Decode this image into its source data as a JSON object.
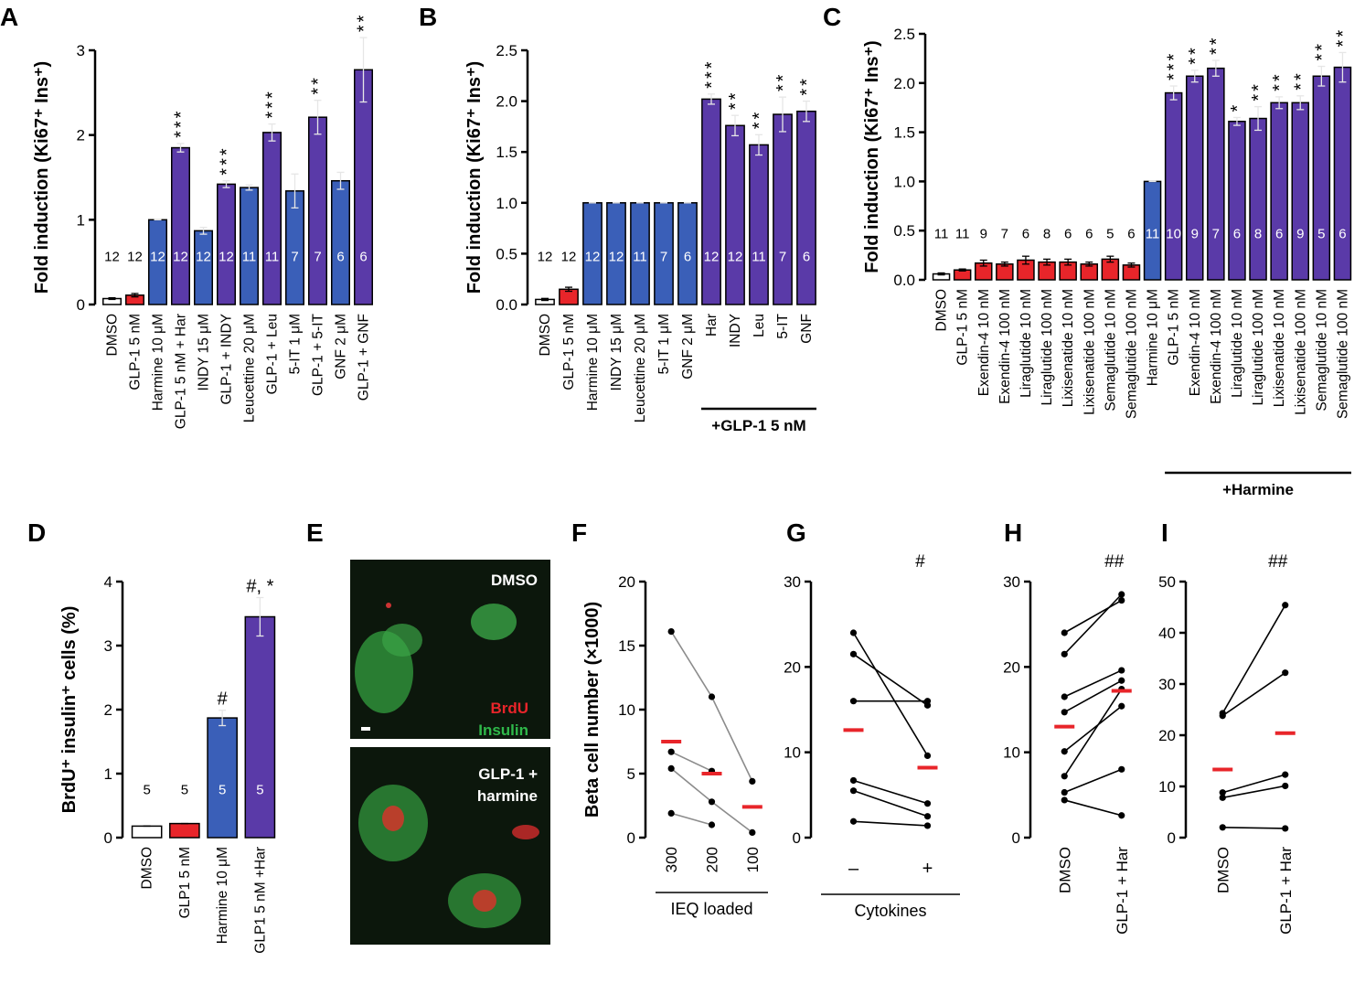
{
  "chart_data": [
    {
      "panel": "A",
      "type": "bar",
      "y_label": "Fold induction (Ki67⁺ Ins⁺)",
      "categories": [
        "DMSO",
        "GLP-1 5 nM",
        "Harmine 10 μM",
        "GLP-1 5 nM + Har",
        "INDY 15 μM",
        "GLP-1 + INDY",
        "Leucettine 20 μM",
        "GLP-1 + Leu",
        "5-IT 1 μM",
        "GLP-1 + 5-IT",
        "GNF 2 μM",
        "GLP-1 + GNF"
      ],
      "values": [
        0.07,
        0.11,
        1.0,
        1.85,
        0.87,
        1.42,
        1.38,
        2.03,
        1.34,
        2.21,
        1.46,
        2.77
      ],
      "errors": [
        0.01,
        0.02,
        0,
        0.05,
        0.04,
        0.04,
        0.03,
        0.1,
        0.2,
        0.2,
        0.1,
        0.38
      ],
      "colors": [
        "#ffffff",
        "#e8252a",
        "#3a5fb8",
        "#5a3aa8",
        "#3a5fb8",
        "#5a3aa8",
        "#3a5fb8",
        "#5a3aa8",
        "#3a5fb8",
        "#5a3aa8",
        "#3a5fb8",
        "#5a3aa8"
      ],
      "n": [
        12,
        12,
        12,
        12,
        12,
        12,
        11,
        11,
        7,
        7,
        6,
        6
      ],
      "significance": [
        null,
        null,
        null,
        "***",
        null,
        "***",
        null,
        "***",
        null,
        "**",
        null,
        "**"
      ],
      "significance_rotated": true,
      "ylim": [
        0,
        3
      ],
      "yticks": [
        0,
        1,
        2,
        3
      ]
    },
    {
      "panel": "B",
      "type": "bar",
      "y_label": "Fold induction (Ki67⁺ Ins⁺)",
      "categories": [
        "DMSO",
        "GLP-1 5 nM",
        "Harmine 10 μM",
        "INDY 15 μM",
        "Leucettine 20 μM",
        "5-IT 1 μM",
        "GNF 2 μM",
        "Har",
        "INDY",
        "Leu",
        "5-IT",
        "GNF"
      ],
      "values": [
        0.05,
        0.15,
        1.0,
        1.0,
        1.0,
        1.0,
        1.0,
        2.02,
        1.76,
        1.57,
        1.87,
        1.9
      ],
      "errors": [
        0.01,
        0.02,
        0,
        0,
        0,
        0,
        0,
        0.05,
        0.1,
        0.1,
        0.17,
        0.1
      ],
      "colors": [
        "#ffffff",
        "#e8252a",
        "#3a5fb8",
        "#3a5fb8",
        "#3a5fb8",
        "#3a5fb8",
        "#3a5fb8",
        "#5a3aa8",
        "#5a3aa8",
        "#5a3aa8",
        "#5a3aa8",
        "#5a3aa8"
      ],
      "n": [
        12,
        12,
        12,
        12,
        11,
        7,
        6,
        12,
        12,
        11,
        7,
        6
      ],
      "significance": [
        null,
        null,
        null,
        null,
        null,
        null,
        null,
        "***",
        "**",
        "**",
        "**",
        "**"
      ],
      "significance_rotated": true,
      "bracket_label": "+GLP-1 5 nM",
      "ylim": [
        0,
        2.5
      ],
      "yticks": [
        {
          "value": 0,
          "label": "0.0"
        },
        0.5,
        {
          "value": 1,
          "label": "1.0"
        },
        1.5,
        {
          "value": 2,
          "label": "2.0"
        },
        2.5
      ]
    },
    {
      "panel": "C",
      "type": "bar",
      "y_label": "Fold induction (Ki67⁺ Ins⁺)",
      "categories": [
        "DMSO",
        "GLP-1 5 nM",
        "Exendin-4 10 nM",
        "Exendin-4 100 nM",
        "Liraglutide 10 nM",
        "Liraglutide 100 nM",
        "Lixisenatide 10 nM",
        "Lixisenatide 100 nM",
        "Semaglutide 10 nM",
        "Semaglutide 100 nM",
        "Harmine 10 μM",
        "GLP-1 5 nM",
        "Exendin-4 10 nM",
        "Exendin-4 100 nM",
        "Liraglutide 10 nM",
        "Liraglutide 100 nM",
        "Lixisenatide 10 nM",
        "Lixisenatide 100 nM",
        "Semaglutide 10 nM",
        "Semaglutide 100 nM"
      ],
      "values": [
        0.06,
        0.1,
        0.17,
        0.16,
        0.2,
        0.18,
        0.18,
        0.16,
        0.21,
        0.15,
        1.0,
        1.9,
        2.07,
        2.15,
        1.61,
        1.64,
        1.8,
        1.8,
        2.07,
        2.16
      ],
      "errors": [
        0.01,
        0.01,
        0.03,
        0.02,
        0.04,
        0.03,
        0.03,
        0.02,
        0.03,
        0.02,
        0,
        0.07,
        0.06,
        0.08,
        0.04,
        0.12,
        0.06,
        0.07,
        0.1,
        0.15
      ],
      "colors": [
        "#ffffff",
        "#e8252a",
        "#e8252a",
        "#e8252a",
        "#e8252a",
        "#e8252a",
        "#e8252a",
        "#e8252a",
        "#e8252a",
        "#e8252a",
        "#3a5fb8",
        "#5a3aa8",
        "#5a3aa8",
        "#5a3aa8",
        "#5a3aa8",
        "#5a3aa8",
        "#5a3aa8",
        "#5a3aa8",
        "#5a3aa8",
        "#5a3aa8"
      ],
      "n": [
        11,
        11,
        9,
        7,
        6,
        8,
        6,
        6,
        5,
        6,
        11,
        10,
        9,
        7,
        6,
        8,
        6,
        9,
        5,
        6
      ],
      "significance": [
        null,
        null,
        null,
        null,
        null,
        null,
        null,
        null,
        null,
        null,
        null,
        "***",
        "**",
        "**",
        "*",
        "**",
        "**",
        "**",
        "**",
        "**"
      ],
      "significance_rotated": true,
      "bracket_label": "+Harmine",
      "ylim": [
        0,
        2.5
      ],
      "yticks": [
        {
          "value": 0,
          "label": "0.0"
        },
        0.5,
        {
          "value": 1,
          "label": "1.0"
        },
        1.5,
        {
          "value": 2,
          "label": "2.0"
        },
        2.5
      ]
    },
    {
      "panel": "D",
      "type": "bar",
      "y_label": "BrdU⁺ insulin⁺ cells (%)",
      "categories": [
        "DMSO",
        "GLP1 5 nM",
        "Harmine 10 μM",
        "GLP1 5 nM +Har"
      ],
      "values": [
        0.18,
        0.22,
        1.87,
        3.45
      ],
      "errors": [
        0,
        0,
        0.12,
        0.3
      ],
      "colors": [
        "#ffffff",
        "#e8252a",
        "#3a5fb8",
        "#5a3aa8"
      ],
      "n": [
        5,
        5,
        5,
        5
      ],
      "significance": [
        null,
        null,
        "#",
        "#, *"
      ],
      "significance_rotated": false,
      "ylim": [
        0,
        4
      ],
      "yticks": [
        0,
        1,
        2,
        3,
        4
      ]
    },
    {
      "panel": "F",
      "type": "paired",
      "y_label": "Beta cell number (×1000)",
      "x_label": "IEQ loaded",
      "categories": [
        "300",
        "200",
        "100"
      ],
      "x_label_rotated": true,
      "line_color": "#8c8c8c",
      "series": [
        {
          "values": [
            16.1,
            11.0,
            4.4
          ]
        },
        {
          "values": [
            6.7,
            5.2,
            null
          ]
        },
        {
          "values": [
            5.4,
            2.8,
            0.4
          ]
        },
        {
          "values": [
            1.9,
            1.0,
            null
          ]
        }
      ],
      "means": [
        7.5,
        5.0,
        2.4
      ],
      "mean_color": "#e8252a",
      "ylim": [
        0,
        20
      ],
      "yticks": [
        0,
        5,
        10,
        15,
        20
      ]
    },
    {
      "panel": "G",
      "type": "paired",
      "x_label": "Cytokines",
      "significance": "#",
      "categories": [
        "–",
        "+"
      ],
      "x_label_rotated": false,
      "line_color": "#000000",
      "series": [
        {
          "values": [
            24,
            9.6
          ]
        },
        {
          "values": [
            21.5,
            15.5
          ]
        },
        {
          "values": [
            16,
            16
          ]
        },
        {
          "values": [
            6.7,
            4.0
          ]
        },
        {
          "values": [
            5.5,
            2.5
          ]
        },
        {
          "values": [
            1.9,
            1.4
          ]
        }
      ],
      "means": [
        12.6,
        8.2
      ],
      "mean_color": "#e8252a",
      "ylim": [
        0,
        30
      ],
      "yticks": [
        0,
        10,
        20,
        30
      ]
    },
    {
      "panel": "H",
      "type": "paired",
      "significance": "##",
      "categories": [
        "DMSO",
        "GLP-1 + Har"
      ],
      "x_label_rotated": true,
      "line_color": "#000000",
      "series": [
        {
          "values": [
            24,
            27.8
          ]
        },
        {
          "values": [
            21.5,
            28.5
          ]
        },
        {
          "values": [
            16.5,
            19.6
          ]
        },
        {
          "values": [
            14.7,
            18.4
          ]
        },
        {
          "values": [
            10.1,
            15.4
          ]
        },
        {
          "values": [
            7.2,
            17.4
          ]
        },
        {
          "values": [
            5.3,
            8.0
          ]
        },
        {
          "values": [
            4.4,
            2.6
          ]
        }
      ],
      "means": [
        13.0,
        17.2
      ],
      "mean_color": "#e8252a",
      "ylim": [
        0,
        30
      ],
      "yticks": [
        0,
        10,
        20,
        30
      ]
    },
    {
      "panel": "I",
      "type": "paired",
      "significance": "##",
      "categories": [
        "DMSO",
        "GLP-1 + Har"
      ],
      "x_label_rotated": true,
      "line_color": "#000000",
      "series": [
        {
          "values": [
            24.3,
            45.4
          ]
        },
        {
          "values": [
            23.8,
            32.2
          ]
        },
        {
          "values": [
            8.8,
            12.3
          ]
        },
        {
          "values": [
            7.8,
            10.1
          ]
        },
        {
          "values": [
            2.0,
            1.8
          ]
        }
      ],
      "means": [
        13.3,
        20.4
      ],
      "mean_color": "#e8252a",
      "ylim": [
        0,
        50
      ],
      "yticks": [
        0,
        10,
        20,
        30,
        40,
        50
      ]
    }
  ],
  "panel_e": {
    "panel": "E",
    "top_label": "DMSO",
    "stain_1": "BrdU",
    "stain_2": "Insulin",
    "bottom_label": [
      "GLP-1 +",
      "harmine"
    ]
  }
}
